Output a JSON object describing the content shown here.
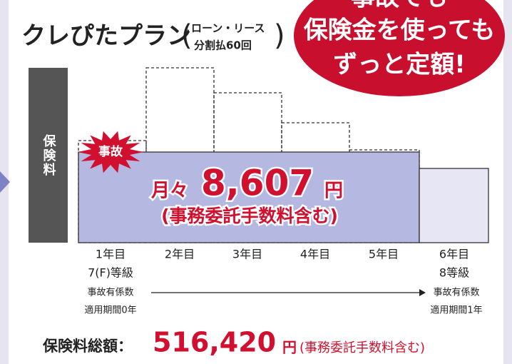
{
  "banner": {
    "lines": [
      "事故でも",
      "保険金を使っても",
      "ずっと定額!"
    ]
  },
  "logo": {
    "name": "クレぴたプラン",
    "note_lines": [
      "ローン・リース",
      "分割払60回"
    ]
  },
  "premium_label": "保険料",
  "accident": "事故",
  "monthly": {
    "prefix": "月々",
    "amount": "8,607",
    "unit": "円",
    "note": "(事務委託手数料含む)"
  },
  "years": [
    "1年目",
    "2年目",
    "3年目",
    "4年目",
    "5年目",
    "6年目"
  ],
  "grades": {
    "first": "7(F)等級",
    "last": "8等級"
  },
  "coefficient": {
    "first": [
      "事故有係数",
      "適用期間0年"
    ],
    "last": [
      "事故有係数",
      "適用期間1年"
    ]
  },
  "total": {
    "label": "保険料総額：",
    "amount": "516,420",
    "unit": "円",
    "note": "(事務委託手数料含む)"
  }
}
